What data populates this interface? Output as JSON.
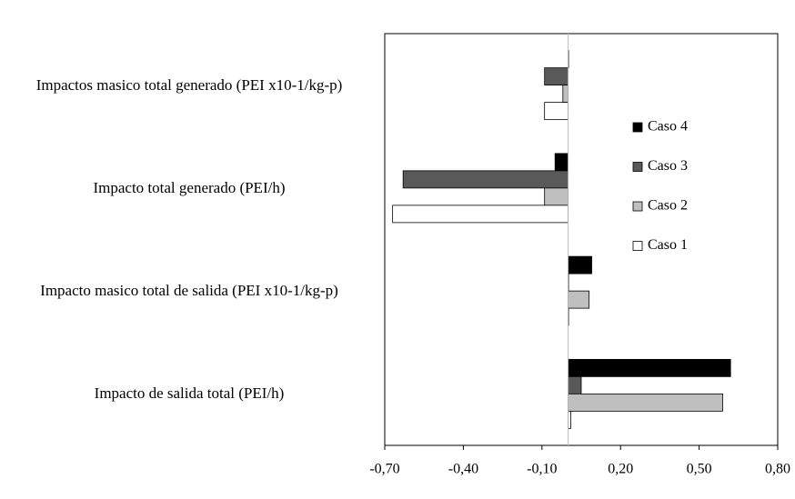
{
  "chart_data": {
    "type": "bar",
    "orientation": "horizontal",
    "categories": [
      "Impactos masico total generado  (PEI x10-1/kg-p)",
      "Impacto total generado  (PEI/h)",
      "Impacto masico total de salida  (PEI x10-1/kg-p)",
      "Impacto de salida total (PEI/h)"
    ],
    "series": [
      {
        "name": "Caso 4",
        "color": "#000000",
        "values": [
          0.0,
          -0.05,
          0.09,
          0.62
        ]
      },
      {
        "name": "Caso 3",
        "color": "#595959",
        "values": [
          -0.09,
          -0.63,
          0.0,
          0.05
        ]
      },
      {
        "name": "Caso 2",
        "color": "#bfbfbf",
        "values": [
          -0.02,
          -0.09,
          0.08,
          0.59
        ]
      },
      {
        "name": "Caso 1",
        "color": "#ffffff",
        "values": [
          -0.09,
          -0.67,
          0.0,
          0.01
        ]
      }
    ],
    "xlim": [
      -0.7,
      0.8
    ],
    "xticks": [
      {
        "value": -0.7,
        "label": "-0,70"
      },
      {
        "value": -0.4,
        "label": "-0,40"
      },
      {
        "value": -0.1,
        "label": "-0,10"
      },
      {
        "value": 0.2,
        "label": "0,20"
      },
      {
        "value": 0.5,
        "label": "0,50"
      },
      {
        "value": 0.8,
        "label": "0,80"
      }
    ],
    "legend": "right"
  }
}
